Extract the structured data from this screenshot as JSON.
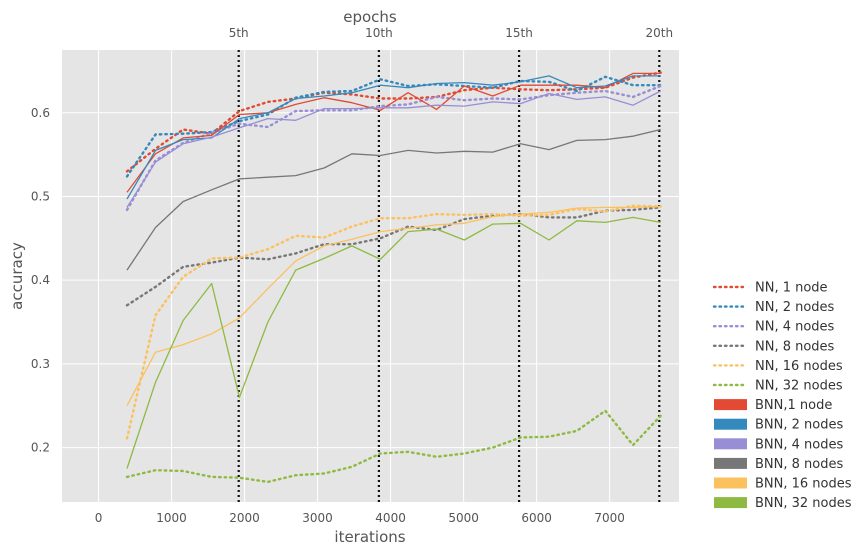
{
  "chart_data": {
    "type": "line",
    "title": "",
    "xlabel": "iterations",
    "ylabel": "accuracy",
    "top_xlabel": "epochs",
    "xlim": [
      -500,
      7950
    ],
    "ylim": [
      0.135,
      0.675
    ],
    "xticks": [
      0,
      1000,
      2000,
      3000,
      4000,
      5000,
      6000,
      7000
    ],
    "yticks": [
      0.2,
      0.3,
      0.4,
      0.5,
      0.6
    ],
    "grid": true,
    "legend_position": "right",
    "epoch_markers": [
      {
        "label": "5th",
        "x": 1920
      },
      {
        "label": "10th",
        "x": 3840
      },
      {
        "label": "15th",
        "x": 5760
      },
      {
        "label": "20th",
        "x": 7680
      }
    ],
    "x": [
      390,
      780,
      1160,
      1550,
      1930,
      2320,
      2700,
      3090,
      3470,
      3860,
      4240,
      4630,
      5010,
      5400,
      5780,
      6170,
      6550,
      6940,
      7320,
      7700
    ],
    "series": [
      {
        "name": "NN, 1 node",
        "style": "dotted",
        "color": "#E24A33",
        "values": [
          0.53,
          0.557,
          0.58,
          0.575,
          0.602,
          0.613,
          0.617,
          0.624,
          0.622,
          0.617,
          0.617,
          0.619,
          0.627,
          0.63,
          0.628,
          0.627,
          0.628,
          0.63,
          0.642,
          0.648
        ]
      },
      {
        "name": "NN, 2 nodes",
        "style": "dotted",
        "color": "#348ABD",
        "values": [
          0.524,
          0.574,
          0.575,
          0.577,
          0.59,
          0.598,
          0.618,
          0.625,
          0.626,
          0.64,
          0.632,
          0.634,
          0.632,
          0.63,
          0.638,
          0.637,
          0.626,
          0.643,
          0.633,
          0.633
        ]
      },
      {
        "name": "NN, 4 nodes",
        "style": "dotted",
        "color": "#988ED5",
        "values": [
          0.484,
          0.543,
          0.564,
          0.576,
          0.587,
          0.583,
          0.602,
          0.603,
          0.603,
          0.608,
          0.61,
          0.619,
          0.615,
          0.617,
          0.616,
          0.621,
          0.624,
          0.626,
          0.619,
          0.632
        ]
      },
      {
        "name": "NN, 8 nodes",
        "style": "dotted",
        "color": "#777777",
        "values": [
          0.37,
          0.392,
          0.416,
          0.421,
          0.427,
          0.425,
          0.432,
          0.443,
          0.443,
          0.45,
          0.464,
          0.46,
          0.473,
          0.477,
          0.479,
          0.475,
          0.475,
          0.483,
          0.484,
          0.487
        ]
      },
      {
        "name": "NN, 16 nodes",
        "style": "dotted",
        "color": "#FBC15E",
        "values": [
          0.211,
          0.358,
          0.404,
          0.426,
          0.427,
          0.437,
          0.453,
          0.451,
          0.464,
          0.474,
          0.474,
          0.479,
          0.478,
          0.479,
          0.477,
          0.478,
          0.485,
          0.482,
          0.489,
          0.488
        ]
      },
      {
        "name": "NN, 32 nodes",
        "style": "dotted",
        "color": "#8EBA42",
        "values": [
          0.165,
          0.173,
          0.172,
          0.165,
          0.164,
          0.159,
          0.167,
          0.169,
          0.177,
          0.193,
          0.195,
          0.189,
          0.193,
          0.2,
          0.212,
          0.213,
          0.22,
          0.244,
          0.203,
          0.238
        ]
      },
      {
        "name": "BNN,1 node",
        "style": "solid",
        "color": "#E24A33",
        "values": [
          0.505,
          0.551,
          0.57,
          0.573,
          0.598,
          0.6,
          0.61,
          0.618,
          0.612,
          0.603,
          0.624,
          0.604,
          0.632,
          0.62,
          0.633,
          0.633,
          0.633,
          0.63,
          0.647,
          0.647
        ]
      },
      {
        "name": "BNN, 2 nodes",
        "style": "solid",
        "color": "#348ABD",
        "values": [
          0.497,
          0.555,
          0.568,
          0.57,
          0.593,
          0.6,
          0.617,
          0.62,
          0.624,
          0.633,
          0.63,
          0.635,
          0.636,
          0.633,
          0.637,
          0.644,
          0.63,
          0.632,
          0.644,
          0.644
        ]
      },
      {
        "name": "BNN, 4 nodes",
        "style": "solid",
        "color": "#988ED5",
        "values": [
          0.487,
          0.541,
          0.563,
          0.571,
          0.582,
          0.593,
          0.591,
          0.605,
          0.605,
          0.606,
          0.606,
          0.609,
          0.608,
          0.613,
          0.611,
          0.623,
          0.616,
          0.619,
          0.609,
          0.626
        ]
      },
      {
        "name": "BNN, 8 nodes",
        "style": "solid",
        "color": "#777777",
        "values": [
          0.412,
          0.463,
          0.494,
          0.508,
          0.521,
          0.523,
          0.525,
          0.534,
          0.551,
          0.549,
          0.555,
          0.552,
          0.554,
          0.553,
          0.563,
          0.556,
          0.567,
          0.568,
          0.572,
          0.58
        ]
      },
      {
        "name": "BNN, 16 nodes",
        "style": "solid",
        "color": "#FBC15E",
        "values": [
          0.25,
          0.314,
          0.323,
          0.336,
          0.355,
          0.39,
          0.423,
          0.441,
          0.449,
          0.458,
          0.462,
          0.466,
          0.468,
          0.476,
          0.479,
          0.481,
          0.486,
          0.487,
          0.487,
          0.488
        ]
      },
      {
        "name": "BNN, 32 nodes",
        "style": "solid",
        "color": "#8EBA42",
        "values": [
          0.175,
          0.278,
          0.352,
          0.396,
          0.26,
          0.35,
          0.412,
          0.426,
          0.441,
          0.425,
          0.458,
          0.461,
          0.448,
          0.467,
          0.468,
          0.448,
          0.471,
          0.469,
          0.475,
          0.469
        ]
      }
    ]
  }
}
